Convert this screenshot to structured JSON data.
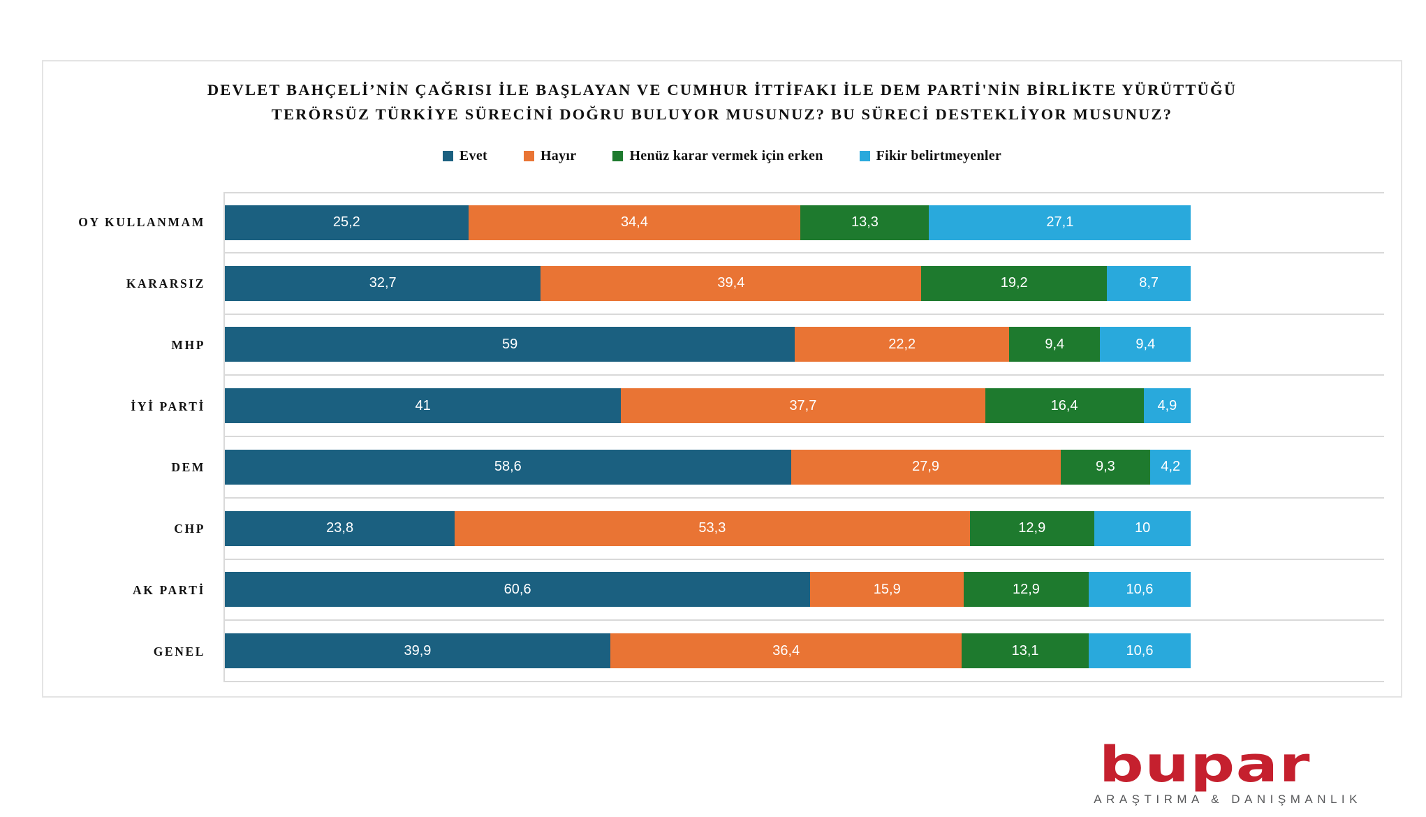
{
  "chart_data": {
    "type": "bar",
    "stacked": true,
    "orientation": "horizontal",
    "title": "DEVLET BAHÇELİ’NİN ÇAĞRISI İLE BAŞLAYAN VE CUMHUR İTTİFAKI İLE DEM PARTİ'NİN BİRLİKTE YÜRÜTTÜĞÜ TERÖRSÜZ TÜRKİYE SÜRECİNİ DOĞRU BULUYOR MUSUNUZ? BU SÜRECİ DESTEKLİYOR MUSUNUZ?",
    "categories": [
      "OY KULLANMAM",
      "KARARSIZ",
      "MHP",
      "İYİ PARTİ",
      "DEM",
      "CHP",
      "AK PARTİ",
      "GENEL"
    ],
    "series": [
      {
        "name": "Evet",
        "color": "#1b6080",
        "values": [
          25.2,
          32.7,
          59,
          41,
          58.6,
          23.8,
          60.6,
          39.9
        ],
        "labels": [
          "25,2",
          "32,7",
          "59",
          "41",
          "58,6",
          "23,8",
          "60,6",
          "39,9"
        ]
      },
      {
        "name": "Hayır",
        "color": "#e97434",
        "values": [
          34.4,
          39.4,
          22.2,
          37.7,
          27.9,
          53.3,
          15.9,
          36.4
        ],
        "labels": [
          "34,4",
          "39,4",
          "22,2",
          "37,7",
          "27,9",
          "53,3",
          "15,9",
          "36,4"
        ]
      },
      {
        "name": "Henüz karar vermek için erken",
        "color": "#1e7a2e",
        "values": [
          13.3,
          19.2,
          9.4,
          16.4,
          9.3,
          12.9,
          12.9,
          13.1
        ],
        "labels": [
          "13,3",
          "19,2",
          "9,4",
          "16,4",
          "9,3",
          "12,9",
          "12,9",
          "13,1"
        ]
      },
      {
        "name": "Fikir belirtmeyenler",
        "color": "#29a9dc",
        "values": [
          27.1,
          8.7,
          9.4,
          4.9,
          4.2,
          10,
          10.6,
          10.6
        ],
        "labels": [
          "27,1",
          "8,7",
          "9,4",
          "4,9",
          "4,2",
          "10",
          "10,6",
          "10,6"
        ]
      }
    ],
    "xlim": [
      0,
      120
    ],
    "grid": "row-separators",
    "legend_position": "top",
    "value_label_color": "#ffffff",
    "gridline_color": "#d9d9d9"
  },
  "logo": {
    "brand": "bupar",
    "tagline": "ARAŞTIRMA & DANIŞMANLIK",
    "brand_color": "#c5202e",
    "tagline_color": "#58595b"
  }
}
